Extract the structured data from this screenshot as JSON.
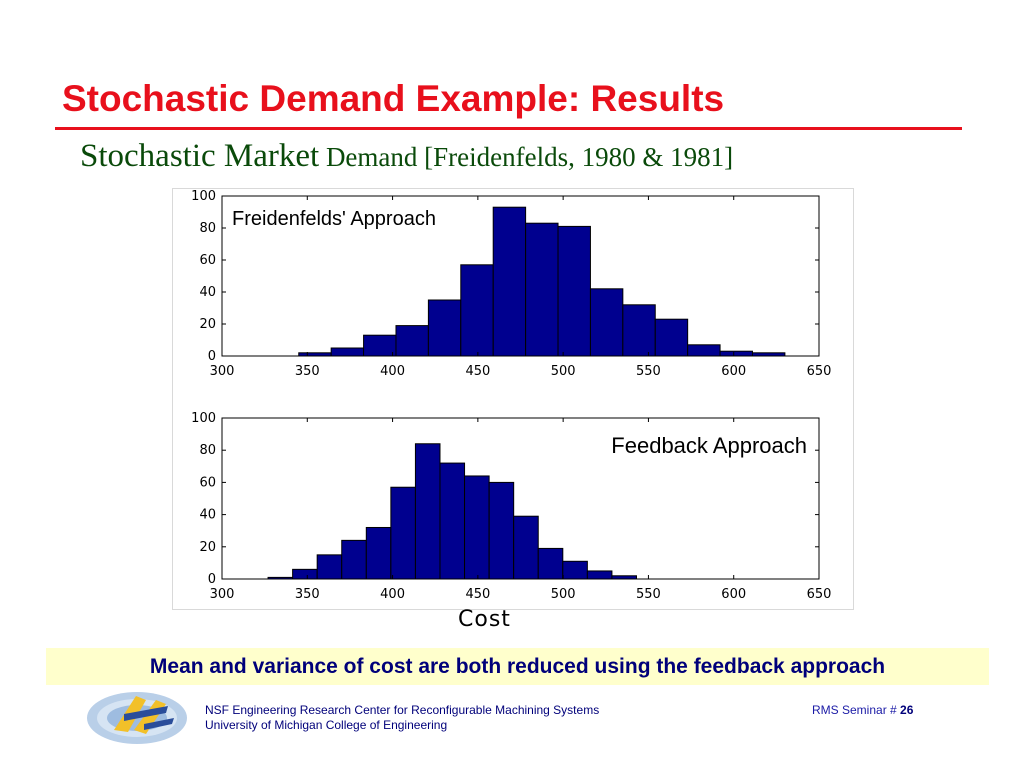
{
  "slide": {
    "title": "Stochastic Demand Example: Results",
    "subtitle_large": "Stochastic Market",
    "subtitle_small": " Demand [Freidenfelds, 1980 & 1981]",
    "x_axis_label": "Cost",
    "conclusion": "Mean and variance of cost are both reduced using the feedback approach"
  },
  "footer": {
    "line1": "NSF Engineering Research Center for Reconfigurable Machining Systems",
    "line2": "University of Michigan College of Engineering",
    "seminar_label": "RMS Seminar # ",
    "page_number": "26"
  },
  "colors": {
    "title": "#e8101c",
    "subtitle": "#0a4a0a",
    "bar_fill": "#00008f",
    "conclusion_bg": "#ffffcc",
    "conclusion_text": "#00007a"
  },
  "chart_data": [
    {
      "type": "bar",
      "title": "Freidenfelds' Approach",
      "xlim": [
        300,
        650
      ],
      "ylim": [
        0,
        100
      ],
      "xticks": [
        300,
        350,
        400,
        450,
        500,
        550,
        600,
        650
      ],
      "yticks": [
        0,
        20,
        40,
        60,
        80,
        100
      ],
      "bin_width": 19,
      "bin_start": 345,
      "values": [
        2,
        5,
        13,
        19,
        35,
        57,
        93,
        83,
        81,
        42,
        32,
        23,
        7,
        3,
        2
      ]
    },
    {
      "type": "bar",
      "title": "Feedback Approach",
      "xlim": [
        300,
        650
      ],
      "ylim": [
        0,
        100
      ],
      "xticks": [
        300,
        350,
        400,
        450,
        500,
        550,
        600,
        650
      ],
      "yticks": [
        0,
        20,
        40,
        60,
        80,
        100
      ],
      "bin_width": 14.4,
      "bin_start": 327,
      "values": [
        1,
        6,
        15,
        24,
        32,
        57,
        84,
        72,
        64,
        60,
        39,
        19,
        11,
        5,
        2
      ]
    }
  ]
}
